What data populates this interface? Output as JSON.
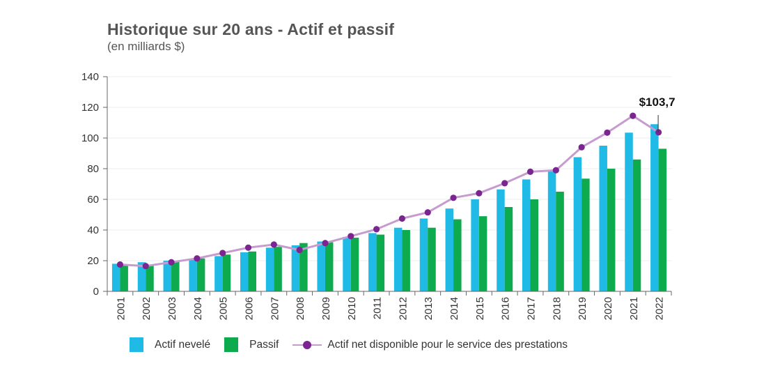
{
  "title": "Historique sur 20 ans - Actif et passif",
  "subtitle": "(en milliards $)",
  "colors": {
    "actif": "#1fbbe6",
    "passif": "#0daa4e",
    "line": "#c79bcf",
    "marker": "#7b2690",
    "axis": "#666666",
    "grid": "#ececec"
  },
  "chart_data": {
    "type": "bar",
    "categories": [
      "2001",
      "2002",
      "2003",
      "2004",
      "2005",
      "2006",
      "2007",
      "2008",
      "2009",
      "2010",
      "2011",
      "2012",
      "2013",
      "2014",
      "2015",
      "2016",
      "2017",
      "2018",
      "2019",
      "2020",
      "2021",
      "2022"
    ],
    "series": [
      {
        "name": "Actif nevelé",
        "type": "bar",
        "values": [
          18,
          19,
          20,
          21,
          23,
          25.5,
          28.5,
          30,
          32.5,
          35.5,
          38,
          41.5,
          47.5,
          54,
          60,
          66.5,
          73,
          78.5,
          87.5,
          95,
          103.5,
          109
        ]
      },
      {
        "name": "Passif",
        "type": "bar",
        "values": [
          17,
          17.5,
          19.5,
          21.5,
          24,
          26,
          29,
          31.5,
          32,
          35,
          37,
          40,
          41.5,
          47,
          49,
          55,
          60,
          65,
          73.5,
          80,
          86,
          93
        ]
      },
      {
        "name": "Actif net disponible pour le service des prestations",
        "type": "line",
        "values": [
          17.5,
          16.5,
          19,
          21.5,
          25,
          28.5,
          30.5,
          27,
          31.5,
          36,
          40.5,
          47.5,
          51.5,
          61,
          64,
          70.5,
          78,
          79,
          94,
          103.5,
          114.5,
          103.7
        ]
      }
    ],
    "yticks": [
      0,
      20,
      40,
      60,
      80,
      100,
      120,
      140
    ],
    "ylim": [
      0,
      140
    ],
    "xlabel": "",
    "ylabel": "",
    "annotation": {
      "text": "$103,7",
      "index": 21
    },
    "legend_position": "bottom"
  }
}
